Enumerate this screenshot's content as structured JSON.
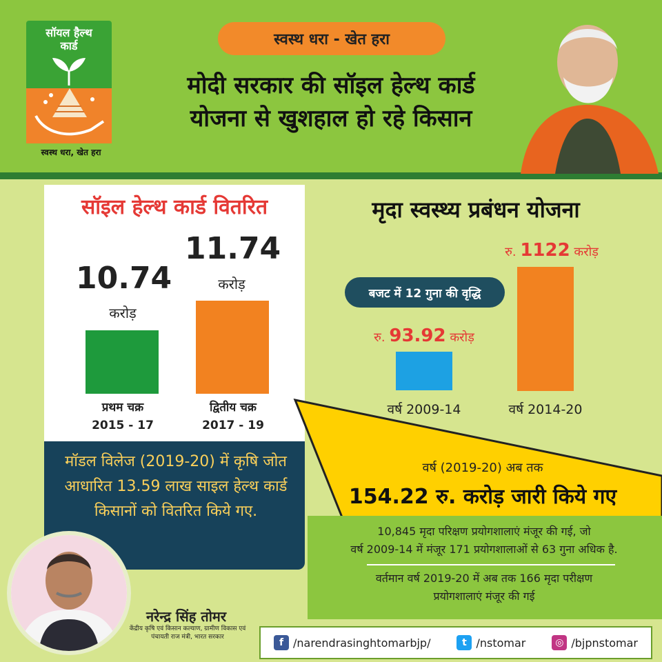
{
  "logo": {
    "title": "सॉयल हैल्थ\nकार्ड",
    "caption": "स्वस्थ धरा, खेत हरा"
  },
  "header": {
    "pill": "स्वस्थ धरा - खेत हरा",
    "headline_line1": "मोदी सरकार की सॉइल हेल्थ कार्ड",
    "headline_line2": "योजना से खुशहाल हो रहे किसान"
  },
  "left_panel": {
    "title": "सॉइल हेल्थ कार्ड वितरित",
    "cycles": [
      {
        "value": "10.74",
        "unit": "करोड़",
        "label": "प्रथम चक्र",
        "years": "2015 - 17",
        "color": "#1e9a3c"
      },
      {
        "value": "11.74",
        "unit": "करोड़",
        "label": "द्वितीय चक्र",
        "years": "2017 - 19",
        "color": "#f28220"
      }
    ]
  },
  "right_panel": {
    "title": "मृदा स्वस्थ्य प्रबंधन योजना",
    "budget_pill": "बजट में 12 गुना की वृद्धि",
    "bars": [
      {
        "prefix": "रु.",
        "value": "93.92",
        "suffix": "करोड़",
        "year": "वर्ष 2009-14",
        "color": "#1da1e3"
      },
      {
        "prefix": "रु.",
        "value": "1122",
        "suffix": "करोड़",
        "year": "वर्ष 2014-20",
        "color": "#f28220"
      }
    ]
  },
  "model_village": {
    "text": "मॉडल विलेज (2019-20) में कृषि जोत आधारित 13.59 लाख साइल हेल्थ कार्ड किसानों को वितरित किये गए."
  },
  "release": {
    "line1": "वर्ष (2019-20) अब तक",
    "line2": "154.22 रु. करोड़ जारी किये गए"
  },
  "labs": {
    "text1_line1": "10,845 मृदा परिक्षण प्रयोगशालाएं मंजूर की गई, जो",
    "text1_line2": "वर्ष 2009-14 में मंजूर 171 प्रयोगशालाओं से 63 गुना अधिक है.",
    "text2_line1": "वर्तमान वर्ष 2019-20 में अब तक 166 मृदा परीक्षण",
    "text2_line2": "प्रयोगशालाएं मंजूर की गई"
  },
  "minister": {
    "name": "नरेन्द्र सिंह तोमर",
    "desc": "केंद्रीय कृषि एवं किसान कल्याण, ग्रामीण विकास एवं पंचायती राज मंत्री, भारत सरकार"
  },
  "social": {
    "facebook": "/narendrasinghtomarbjp/",
    "twitter": "/nstomar",
    "instagram": "/bjpnstomar"
  },
  "colors": {
    "header_green": "#8cc63f",
    "orange": "#f28220",
    "navy": "#17425a",
    "yellow": "#ffd000",
    "red_text": "#e53935"
  }
}
